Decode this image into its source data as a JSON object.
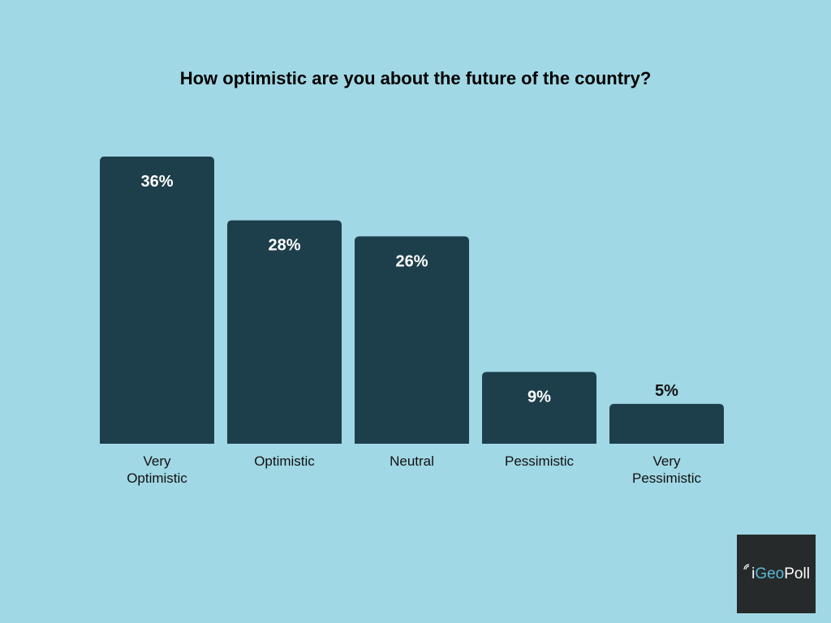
{
  "colors": {
    "background": "#a1d8e5",
    "bar": "#1d3f4b",
    "label_inside": "#ffffff",
    "label_outside": "#111111",
    "logo_background": "#262a2b",
    "logo_accent": "#5bb8d6",
    "logo_text": "#ffffff"
  },
  "logo": {
    "prefix": "i",
    "geo": "Geo",
    "poll": "Poll",
    "icon": "signal-icon"
  },
  "chart_data": {
    "type": "bar",
    "title": "How optimistic are you about the future of the country?",
    "categories": [
      [
        "Very",
        "Optimistic"
      ],
      [
        "Optimistic"
      ],
      [
        "Neutral"
      ],
      [
        "Pessimistic"
      ],
      [
        "Very",
        "Pessimistic"
      ]
    ],
    "values": [
      36,
      28,
      26,
      9,
      5
    ],
    "value_labels": [
      "36%",
      "28%",
      "26%",
      "9%",
      "5%"
    ],
    "ylim": [
      0,
      36
    ],
    "xlabel": "",
    "ylabel": "",
    "grid": false,
    "legend": "none"
  }
}
